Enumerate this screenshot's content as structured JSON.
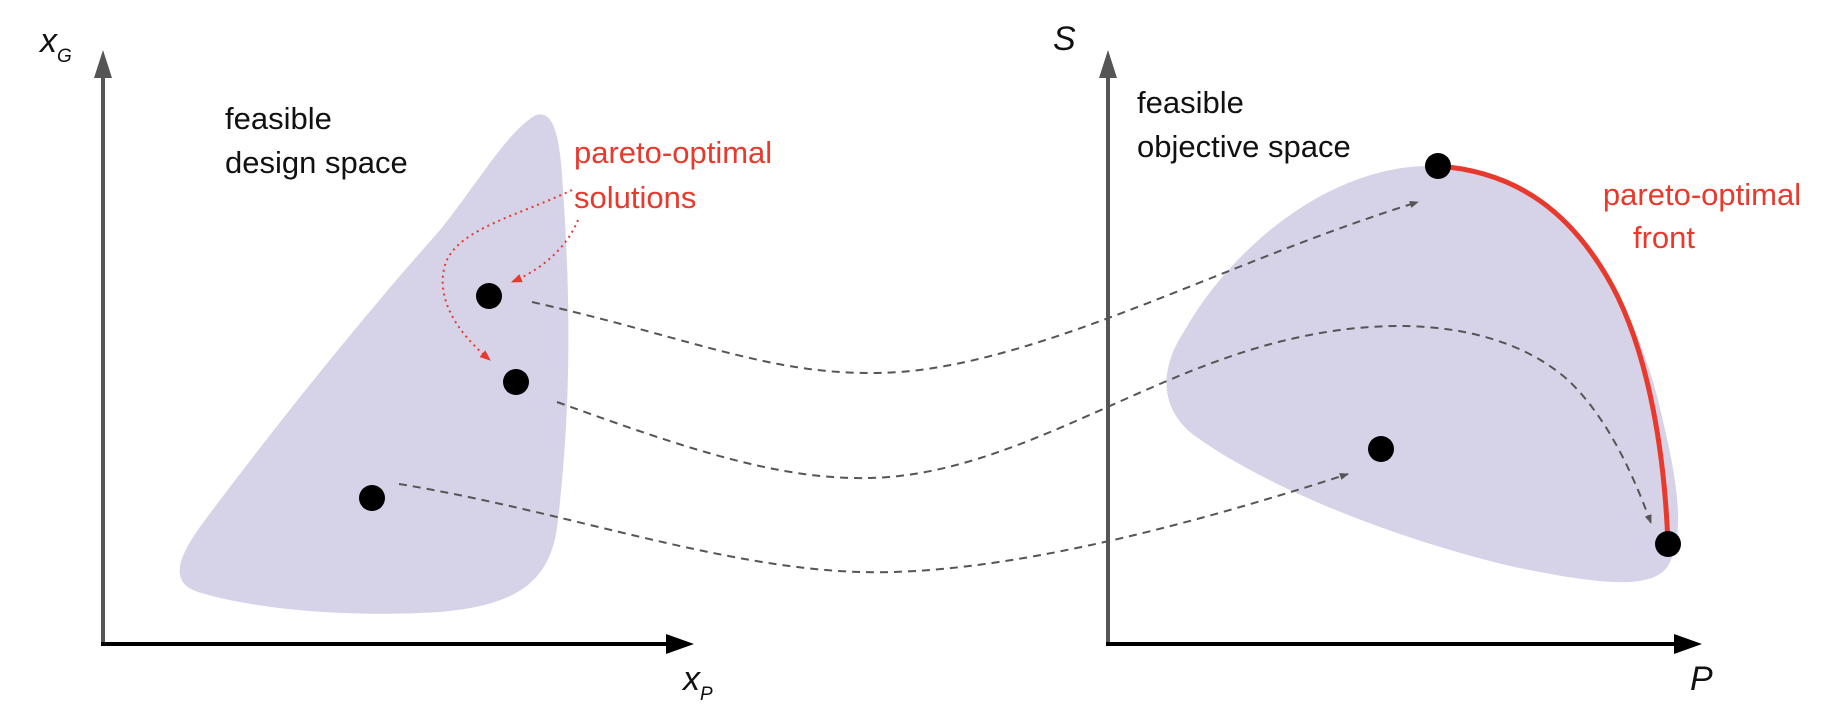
{
  "colors": {
    "region_fill": "#d6d3e8",
    "axis": "#555555",
    "dashed_arrow": "#555555",
    "highlight": "#e8392c",
    "point": "#000000"
  },
  "design_space": {
    "axis_y_main": "x",
    "axis_y_sub": "G",
    "axis_x_main": "x",
    "axis_x_sub": "P",
    "region_label_line1": "feasible",
    "region_label_line2": "design space",
    "callout_line1": "pareto-optimal",
    "callout_line2": "solutions"
  },
  "objective_space": {
    "axis_y_label": "S",
    "axis_x_label": "P",
    "region_label_line1": "feasible",
    "region_label_line2": "objective space",
    "front_label_line1": "pareto-optimal",
    "front_label_line2": "front"
  }
}
